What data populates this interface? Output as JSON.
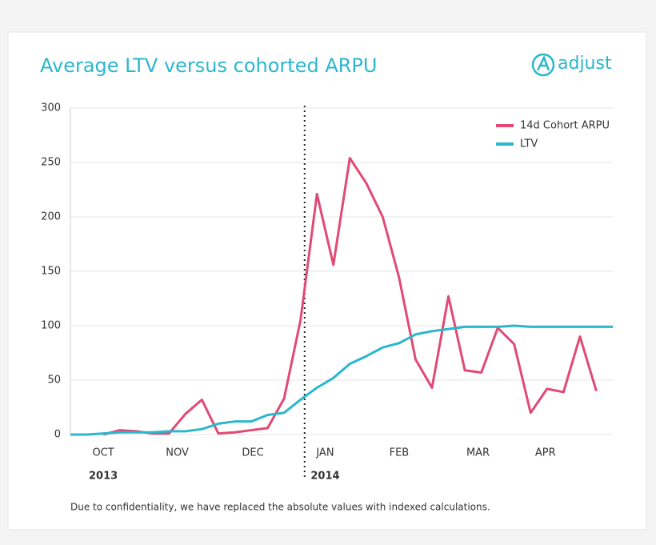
{
  "chart_data": {
    "type": "line",
    "title": "Average LTV versus cohorted ARPU",
    "brand": "adjust",
    "note": "Due to confidentiality, we have replaced the absolute values with indexed calculations.",
    "x": [
      0,
      1,
      2,
      3,
      4,
      5,
      6,
      7,
      8,
      9,
      10,
      11,
      12,
      13,
      14,
      15,
      16,
      17,
      18,
      19,
      20,
      21,
      22,
      23,
      24,
      25,
      26,
      27,
      28,
      29,
      30,
      31,
      32,
      33
    ],
    "xlim": [
      0,
      33
    ],
    "xticks": [
      {
        "value": 2,
        "label": "OCT"
      },
      {
        "value": 6.5,
        "label": "NOV"
      },
      {
        "value": 11.1,
        "label": "DEC"
      },
      {
        "value": 15.5,
        "label": "JAN"
      },
      {
        "value": 20,
        "label": "FEB"
      },
      {
        "value": 24.8,
        "label": "MAR"
      },
      {
        "value": 28.9,
        "label": "APR"
      }
    ],
    "year_labels": [
      {
        "value": 2,
        "label": "2013"
      },
      {
        "value": 15.5,
        "label": "2014"
      }
    ],
    "divider_x": 14.25,
    "ylim": [
      0,
      300
    ],
    "yticks": [
      0,
      50,
      100,
      150,
      200,
      250,
      300
    ],
    "grid": true,
    "legend": "top-right",
    "series": [
      {
        "name": "14d Cohort ARPU",
        "color": "#e04a74",
        "values": [
          null,
          null,
          0,
          4,
          3,
          1,
          1,
          19,
          32,
          1,
          2,
          4,
          6,
          33,
          105,
          221,
          156,
          254,
          231,
          200,
          144,
          69,
          43,
          127,
          59,
          57,
          98,
          83,
          20,
          42,
          39,
          90,
          40,
          null
        ]
      },
      {
        "name": "LTV",
        "color": "#2bb7cc",
        "values": [
          0,
          0,
          1,
          2,
          2,
          2,
          3,
          3,
          5,
          10,
          12,
          12,
          18,
          20,
          32,
          43,
          52,
          65,
          72,
          80,
          84,
          92,
          95,
          97,
          99,
          99,
          99,
          100,
          99,
          99,
          99,
          99,
          99,
          99
        ]
      }
    ]
  }
}
